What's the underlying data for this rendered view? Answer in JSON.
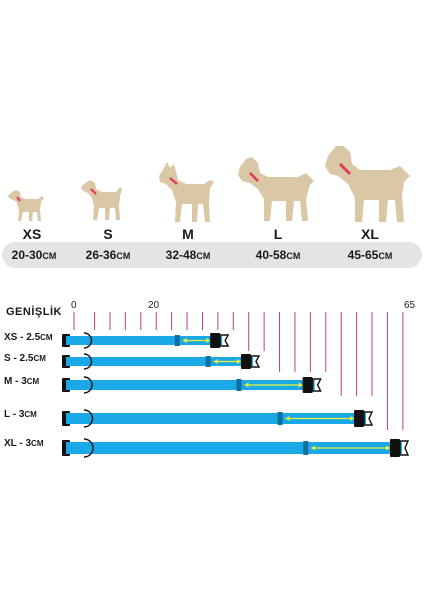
{
  "sizes": [
    {
      "code": "XS",
      "range": "20-30",
      "unit": "CM"
    },
    {
      "code": "S",
      "range": "26-36",
      "unit": "CM"
    },
    {
      "code": "M",
      "range": "32-48",
      "unit": "CM"
    },
    {
      "code": "L",
      "range": "40-58",
      "unit": "CM"
    },
    {
      "code": "XL",
      "range": "45-65",
      "unit": "CM"
    }
  ],
  "scale": {
    "title": "GENİŞLİK",
    "tick_labels": [
      "0",
      "20",
      "65"
    ],
    "min": 0,
    "max": 65
  },
  "collars": [
    {
      "label": "XS - 2.5",
      "unit": "CM",
      "min_length": 20,
      "max_length": 30
    },
    {
      "label": "S - 2.5",
      "unit": "CM",
      "min_length": 26,
      "max_length": 36
    },
    {
      "label": "M - 3",
      "unit": "CM",
      "min_length": 32,
      "max_length": 48
    },
    {
      "label": "L - 3",
      "unit": "CM",
      "min_length": 40,
      "max_length": 58
    },
    {
      "label": "XL - 3",
      "unit": "CM",
      "min_length": 45,
      "max_length": 65
    }
  ],
  "colors": {
    "dog": "#d9c7a6",
    "collar_band": "#e23a5a",
    "strap": "#1aa9e6",
    "buckle": "#111111",
    "arrow": "#e8f23a",
    "grid_line": "#c03c8c",
    "range_bar": "#e4e4e4"
  },
  "icons": [
    "dog-silhouette-icon",
    "collar-icon",
    "buckle-icon",
    "double-arrow-icon"
  ]
}
